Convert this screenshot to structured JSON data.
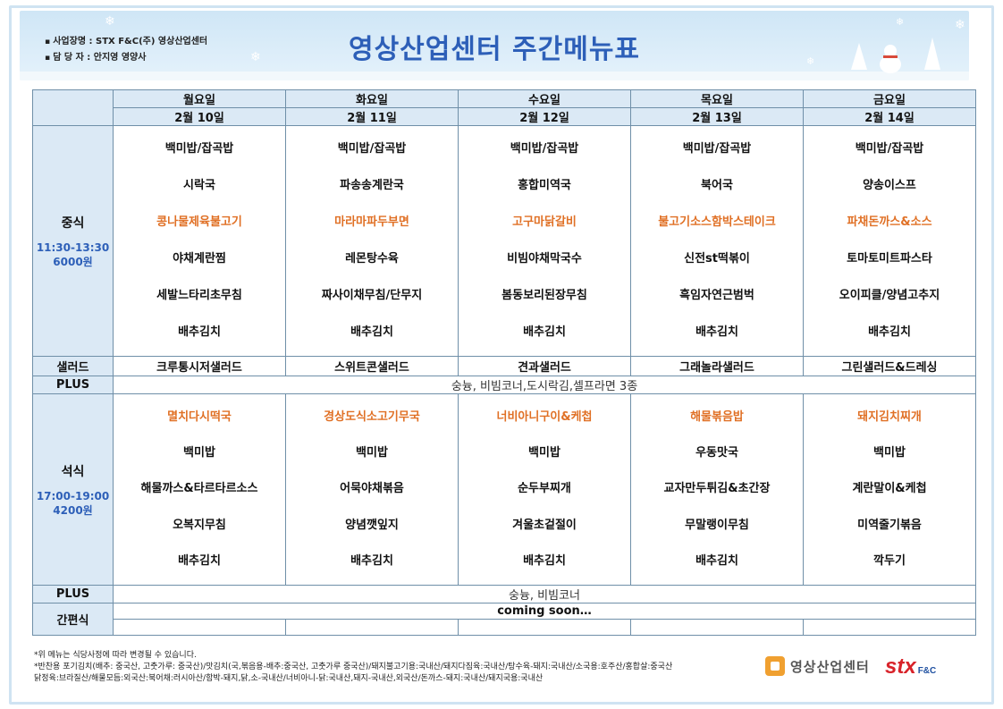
{
  "header": {
    "title": "영상산업센터 주간메뉴표",
    "info": [
      "사업장명 : STX F&C(주) 영상산업센터",
      "담 당 자 : 안지영 영양사"
    ]
  },
  "days": [
    {
      "day": "월요일",
      "date": "2월 10일"
    },
    {
      "day": "화요일",
      "date": "2월 11일"
    },
    {
      "day": "수요일",
      "date": "2월 12일"
    },
    {
      "day": "목요일",
      "date": "2월 13일"
    },
    {
      "day": "금요일",
      "date": "2월 14일"
    }
  ],
  "lunch": {
    "label": "중식",
    "time": "11:30-13:30",
    "price": "6000원",
    "menus": [
      [
        "백미밥/잡곡밥",
        "시락국",
        "콩나물제육불고기",
        "야채계란찜",
        "세발느타리초무침",
        "배추김치"
      ],
      [
        "백미밥/잡곡밥",
        "파송송계란국",
        "마라마파두부면",
        "레몬탕수육",
        "짜사이채무침/단무지",
        "배추김치"
      ],
      [
        "백미밥/잡곡밥",
        "홍합미역국",
        "고구마닭갈비",
        "비빔야채막국수",
        "봄동보리된장무침",
        "배추김치"
      ],
      [
        "백미밥/잡곡밥",
        "북어국",
        "불고기소스함박스테이크",
        "신전st떡볶이",
        "흑임자연근범벅",
        "배추김치"
      ],
      [
        "백미밥/잡곡밥",
        "양송이스프",
        "파채돈까스&소스",
        "토마토미트파스타",
        "오이피클/양념고추지",
        "배추김치"
      ]
    ],
    "highlight_index": 2
  },
  "salad": {
    "label": "샐러드",
    "items": [
      "크루통시저샐러드",
      "스위트콘샐러드",
      "견과샐러드",
      "그래놀라샐러드",
      "그린샐러드&드레싱"
    ]
  },
  "plus_lunch": {
    "label": "PLUS",
    "text": "숭늉, 비빔코너,도시락김,셀프라면 3종"
  },
  "dinner": {
    "label": "석식",
    "time": "17:00-19:00",
    "price": "4200원",
    "menus": [
      [
        "멸치다시떡국",
        "백미밥",
        "해물까스&타르타르소스",
        "오복지무침",
        "배추김치"
      ],
      [
        "경상도식소고기무국",
        "백미밥",
        "어묵야채볶음",
        "양념깻잎지",
        "배추김치"
      ],
      [
        "너비아니구이&케첩",
        "백미밥",
        "순두부찌개",
        "겨울초겉절이",
        "배추김치"
      ],
      [
        "해물볶음밥",
        "우동맛국",
        "교자만두튀김&초간장",
        "무말랭이무침",
        "배추김치"
      ],
      [
        "돼지김치찌개",
        "백미밥",
        "계란말이&케첩",
        "미역줄기볶음",
        "깍두기"
      ]
    ],
    "highlight_index": 0
  },
  "plus_dinner": {
    "label": "PLUS",
    "text": "숭늉, 비빔코너"
  },
  "snack": {
    "label": "간편식",
    "text": "coming soon…"
  },
  "notes": [
    "*위 메뉴는 식당사정에 따라 변경될 수 있습니다.",
    "*반찬용 포기김치(배추: 중국산, 고춧가루: 중국산)/맛김치(국,볶음용-배추:중국산, 고춧가루 중국산)/돼지불고기용:국내산/돼지다짐육:국내산/탕수육-돼지:국내산/소국용:호주산/홍합살:중국산",
    "닭정육:브라질산/해물모듬:외국산:북어채:러시아산/함박-돼지,닭,소-국내산/너비아니-닭:국내산,돼지-국내산,외국산/돈까스-돼지:국내산/돼지국용:국내산"
  ],
  "logos": {
    "center": "영상산업센터",
    "brand": "stx",
    "brand_sub": "F&C"
  },
  "colors": {
    "title": "#2d5fb8",
    "highlight": "#e07025",
    "header_bg": "#dbe9f5"
  }
}
